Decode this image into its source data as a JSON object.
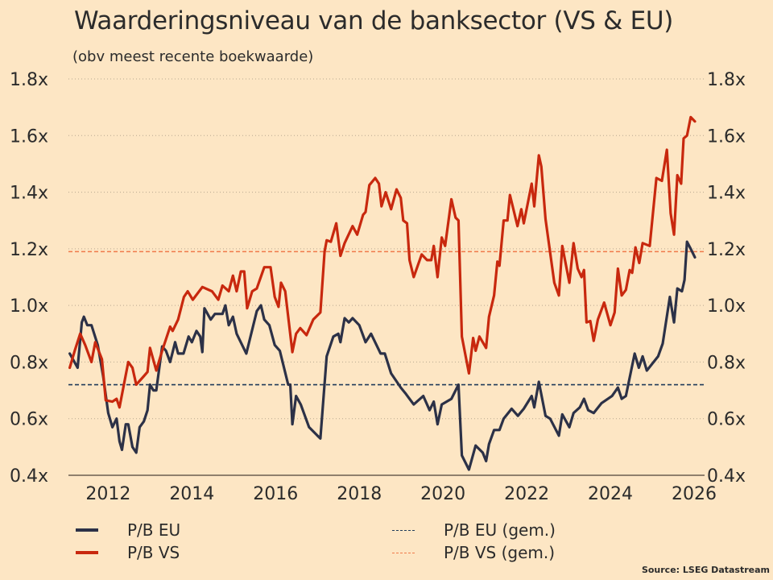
{
  "chart_data": {
    "type": "line",
    "title": "Waarderingsniveau van de banksector (VS & EU)",
    "subtitle": "(obv meest recente boekwaarde)",
    "xlabel": "",
    "ylabel": "",
    "xlim": [
      2011.05,
      2026.25
    ],
    "ylim": [
      0.4,
      1.8
    ],
    "x_ticks": [
      2012,
      2014,
      2016,
      2018,
      2020,
      2022,
      2024,
      2026
    ],
    "x_tick_labels": [
      "2012",
      "2014",
      "2016",
      "2018",
      "2020",
      "2022",
      "2024",
      "2026"
    ],
    "y_ticks": [
      0.4,
      0.6,
      0.8,
      1.0,
      1.2,
      1.4,
      1.6,
      1.8
    ],
    "y_tick_labels": [
      "0.4x",
      "0.6x",
      "0.8x",
      "1.0x",
      "1.2x",
      "1.4x",
      "1.6x",
      "1.8x"
    ],
    "grid": "horizontal dotted",
    "legend_placement": "bottom",
    "series": [
      {
        "name": "P/B EU",
        "color": "#2c3147",
        "style": "solid",
        "points": [
          [
            2011.08,
            0.83
          ],
          [
            2011.27,
            0.78
          ],
          [
            2011.37,
            0.94
          ],
          [
            2011.42,
            0.96
          ],
          [
            2011.5,
            0.93
          ],
          [
            2011.6,
            0.93
          ],
          [
            2011.75,
            0.86
          ],
          [
            2011.88,
            0.75
          ],
          [
            2012.0,
            0.62
          ],
          [
            2012.1,
            0.57
          ],
          [
            2012.2,
            0.6
          ],
          [
            2012.27,
            0.52
          ],
          [
            2012.33,
            0.49
          ],
          [
            2012.42,
            0.58
          ],
          [
            2012.48,
            0.58
          ],
          [
            2012.58,
            0.5
          ],
          [
            2012.67,
            0.48
          ],
          [
            2012.75,
            0.57
          ],
          [
            2012.85,
            0.59
          ],
          [
            2012.94,
            0.63
          ],
          [
            2013.0,
            0.72
          ],
          [
            2013.08,
            0.7
          ],
          [
            2013.15,
            0.7
          ],
          [
            2013.29,
            0.855
          ],
          [
            2013.38,
            0.84
          ],
          [
            2013.48,
            0.8
          ],
          [
            2013.6,
            0.87
          ],
          [
            2013.67,
            0.83
          ],
          [
            2013.8,
            0.83
          ],
          [
            2013.92,
            0.89
          ],
          [
            2014.0,
            0.87
          ],
          [
            2014.11,
            0.91
          ],
          [
            2014.2,
            0.89
          ],
          [
            2014.25,
            0.835
          ],
          [
            2014.3,
            0.99
          ],
          [
            2014.45,
            0.95
          ],
          [
            2014.55,
            0.97
          ],
          [
            2014.73,
            0.97
          ],
          [
            2014.8,
            1.0
          ],
          [
            2014.88,
            0.93
          ],
          [
            2014.98,
            0.96
          ],
          [
            2015.07,
            0.9
          ],
          [
            2015.3,
            0.83
          ],
          [
            2015.55,
            0.98
          ],
          [
            2015.65,
            1.0
          ],
          [
            2015.73,
            0.95
          ],
          [
            2015.85,
            0.93
          ],
          [
            2015.98,
            0.86
          ],
          [
            2016.1,
            0.84
          ],
          [
            2016.3,
            0.72
          ],
          [
            2016.35,
            0.72
          ],
          [
            2016.4,
            0.58
          ],
          [
            2016.49,
            0.68
          ],
          [
            2016.6,
            0.65
          ],
          [
            2016.8,
            0.57
          ],
          [
            2017.0,
            0.54
          ],
          [
            2017.07,
            0.53
          ],
          [
            2017.22,
            0.82
          ],
          [
            2017.38,
            0.89
          ],
          [
            2017.5,
            0.9
          ],
          [
            2017.55,
            0.87
          ],
          [
            2017.65,
            0.955
          ],
          [
            2017.75,
            0.94
          ],
          [
            2017.84,
            0.955
          ],
          [
            2018.0,
            0.93
          ],
          [
            2018.15,
            0.87
          ],
          [
            2018.28,
            0.9
          ],
          [
            2018.51,
            0.83
          ],
          [
            2018.61,
            0.83
          ],
          [
            2018.76,
            0.76
          ],
          [
            2018.99,
            0.71
          ],
          [
            2019.1,
            0.69
          ],
          [
            2019.3,
            0.65
          ],
          [
            2019.53,
            0.68
          ],
          [
            2019.68,
            0.63
          ],
          [
            2019.78,
            0.66
          ],
          [
            2019.87,
            0.58
          ],
          [
            2019.97,
            0.65
          ],
          [
            2020.2,
            0.67
          ],
          [
            2020.37,
            0.72
          ],
          [
            2020.45,
            0.47
          ],
          [
            2020.62,
            0.42
          ],
          [
            2020.78,
            0.505
          ],
          [
            2020.95,
            0.48
          ],
          [
            2021.03,
            0.45
          ],
          [
            2021.1,
            0.51
          ],
          [
            2021.22,
            0.56
          ],
          [
            2021.35,
            0.56
          ],
          [
            2021.45,
            0.6
          ],
          [
            2021.64,
            0.635
          ],
          [
            2021.79,
            0.61
          ],
          [
            2021.93,
            0.635
          ],
          [
            2022.12,
            0.68
          ],
          [
            2022.18,
            0.64
          ],
          [
            2022.29,
            0.73
          ],
          [
            2022.45,
            0.61
          ],
          [
            2022.56,
            0.6
          ],
          [
            2022.77,
            0.54
          ],
          [
            2022.85,
            0.615
          ],
          [
            2023.02,
            0.57
          ],
          [
            2023.12,
            0.62
          ],
          [
            2023.27,
            0.64
          ],
          [
            2023.37,
            0.67
          ],
          [
            2023.47,
            0.63
          ],
          [
            2023.6,
            0.62
          ],
          [
            2023.79,
            0.655
          ],
          [
            2024.04,
            0.68
          ],
          [
            2024.18,
            0.71
          ],
          [
            2024.27,
            0.67
          ],
          [
            2024.37,
            0.68
          ],
          [
            2024.58,
            0.83
          ],
          [
            2024.68,
            0.78
          ],
          [
            2024.77,
            0.82
          ],
          [
            2024.87,
            0.77
          ],
          [
            2025.14,
            0.82
          ],
          [
            2025.25,
            0.865
          ],
          [
            2025.42,
            1.03
          ],
          [
            2025.52,
            0.94
          ],
          [
            2025.6,
            1.06
          ],
          [
            2025.71,
            1.05
          ],
          [
            2025.77,
            1.09
          ],
          [
            2025.83,
            1.225
          ],
          [
            2025.92,
            1.2
          ],
          [
            2026.02,
            1.17
          ]
        ]
      },
      {
        "name": "P/B VS",
        "color": "#c8280e",
        "style": "solid",
        "points": [
          [
            2011.08,
            0.78
          ],
          [
            2011.2,
            0.84
          ],
          [
            2011.33,
            0.9
          ],
          [
            2011.45,
            0.86
          ],
          [
            2011.6,
            0.8
          ],
          [
            2011.69,
            0.87
          ],
          [
            2011.85,
            0.81
          ],
          [
            2011.94,
            0.665
          ],
          [
            2012.1,
            0.66
          ],
          [
            2012.2,
            0.67
          ],
          [
            2012.27,
            0.64
          ],
          [
            2012.48,
            0.8
          ],
          [
            2012.58,
            0.78
          ],
          [
            2012.67,
            0.72
          ],
          [
            2012.85,
            0.75
          ],
          [
            2012.94,
            0.765
          ],
          [
            2013.0,
            0.85
          ],
          [
            2013.15,
            0.77
          ],
          [
            2013.29,
            0.84
          ],
          [
            2013.48,
            0.925
          ],
          [
            2013.54,
            0.91
          ],
          [
            2013.67,
            0.95
          ],
          [
            2013.81,
            1.03
          ],
          [
            2013.9,
            1.05
          ],
          [
            2014.02,
            1.02
          ],
          [
            2014.25,
            1.065
          ],
          [
            2014.48,
            1.05
          ],
          [
            2014.63,
            1.02
          ],
          [
            2014.73,
            1.07
          ],
          [
            2014.88,
            1.05
          ],
          [
            2014.98,
            1.105
          ],
          [
            2015.07,
            1.05
          ],
          [
            2015.17,
            1.12
          ],
          [
            2015.25,
            1.12
          ],
          [
            2015.32,
            0.99
          ],
          [
            2015.44,
            1.05
          ],
          [
            2015.55,
            1.06
          ],
          [
            2015.73,
            1.135
          ],
          [
            2015.88,
            1.135
          ],
          [
            2015.98,
            1.03
          ],
          [
            2016.07,
            0.995
          ],
          [
            2016.13,
            1.08
          ],
          [
            2016.23,
            1.05
          ],
          [
            2016.4,
            0.835
          ],
          [
            2016.49,
            0.9
          ],
          [
            2016.59,
            0.92
          ],
          [
            2016.74,
            0.895
          ],
          [
            2016.9,
            0.95
          ],
          [
            2017.07,
            0.975
          ],
          [
            2017.17,
            1.19
          ],
          [
            2017.22,
            1.23
          ],
          [
            2017.32,
            1.225
          ],
          [
            2017.45,
            1.29
          ],
          [
            2017.55,
            1.175
          ],
          [
            2017.65,
            1.22
          ],
          [
            2017.84,
            1.28
          ],
          [
            2017.95,
            1.25
          ],
          [
            2018.09,
            1.32
          ],
          [
            2018.15,
            1.33
          ],
          [
            2018.24,
            1.425
          ],
          [
            2018.38,
            1.45
          ],
          [
            2018.47,
            1.43
          ],
          [
            2018.53,
            1.35
          ],
          [
            2018.63,
            1.4
          ],
          [
            2018.76,
            1.34
          ],
          [
            2018.89,
            1.41
          ],
          [
            2018.99,
            1.38
          ],
          [
            2019.05,
            1.3
          ],
          [
            2019.14,
            1.29
          ],
          [
            2019.2,
            1.16
          ],
          [
            2019.3,
            1.1
          ],
          [
            2019.49,
            1.18
          ],
          [
            2019.62,
            1.16
          ],
          [
            2019.72,
            1.16
          ],
          [
            2019.78,
            1.21
          ],
          [
            2019.87,
            1.1
          ],
          [
            2019.97,
            1.24
          ],
          [
            2020.05,
            1.21
          ],
          [
            2020.2,
            1.375
          ],
          [
            2020.3,
            1.31
          ],
          [
            2020.37,
            1.3
          ],
          [
            2020.45,
            0.89
          ],
          [
            2020.62,
            0.76
          ],
          [
            2020.72,
            0.885
          ],
          [
            2020.78,
            0.84
          ],
          [
            2020.87,
            0.89
          ],
          [
            2021.03,
            0.85
          ],
          [
            2021.1,
            0.96
          ],
          [
            2021.22,
            1.035
          ],
          [
            2021.3,
            1.155
          ],
          [
            2021.35,
            1.14
          ],
          [
            2021.45,
            1.3
          ],
          [
            2021.54,
            1.3
          ],
          [
            2021.6,
            1.39
          ],
          [
            2021.78,
            1.28
          ],
          [
            2021.87,
            1.34
          ],
          [
            2021.93,
            1.29
          ],
          [
            2022.12,
            1.43
          ],
          [
            2022.18,
            1.35
          ],
          [
            2022.29,
            1.53
          ],
          [
            2022.35,
            1.49
          ],
          [
            2022.45,
            1.305
          ],
          [
            2022.66,
            1.08
          ],
          [
            2022.77,
            1.035
          ],
          [
            2022.85,
            1.21
          ],
          [
            2023.02,
            1.08
          ],
          [
            2023.12,
            1.22
          ],
          [
            2023.22,
            1.13
          ],
          [
            2023.31,
            1.1
          ],
          [
            2023.37,
            1.125
          ],
          [
            2023.43,
            0.94
          ],
          [
            2023.52,
            0.945
          ],
          [
            2023.6,
            0.875
          ],
          [
            2023.7,
            0.95
          ],
          [
            2023.85,
            1.01
          ],
          [
            2024.0,
            0.93
          ],
          [
            2024.1,
            0.975
          ],
          [
            2024.18,
            1.13
          ],
          [
            2024.27,
            1.035
          ],
          [
            2024.37,
            1.055
          ],
          [
            2024.46,
            1.125
          ],
          [
            2024.52,
            1.115
          ],
          [
            2024.6,
            1.205
          ],
          [
            2024.69,
            1.15
          ],
          [
            2024.77,
            1.22
          ],
          [
            2024.94,
            1.21
          ],
          [
            2025.1,
            1.45
          ],
          [
            2025.23,
            1.44
          ],
          [
            2025.35,
            1.55
          ],
          [
            2025.44,
            1.325
          ],
          [
            2025.52,
            1.25
          ],
          [
            2025.6,
            1.46
          ],
          [
            2025.69,
            1.43
          ],
          [
            2025.75,
            1.59
          ],
          [
            2025.83,
            1.6
          ],
          [
            2025.92,
            1.665
          ],
          [
            2026.02,
            1.65
          ]
        ]
      },
      {
        "name": "P/B EU (gem.)",
        "color": "#1f3a5a",
        "style": "dashed",
        "value": 0.72
      },
      {
        "name": "P/B VS (gem.)",
        "color": "#f07a4a",
        "style": "dashed",
        "value": 1.19
      }
    ],
    "legend": [
      "P/B EU",
      "P/B VS",
      "P/B EU (gem.)",
      "P/B VS (gem.)"
    ],
    "source": "Source: LSEG Datastream"
  }
}
